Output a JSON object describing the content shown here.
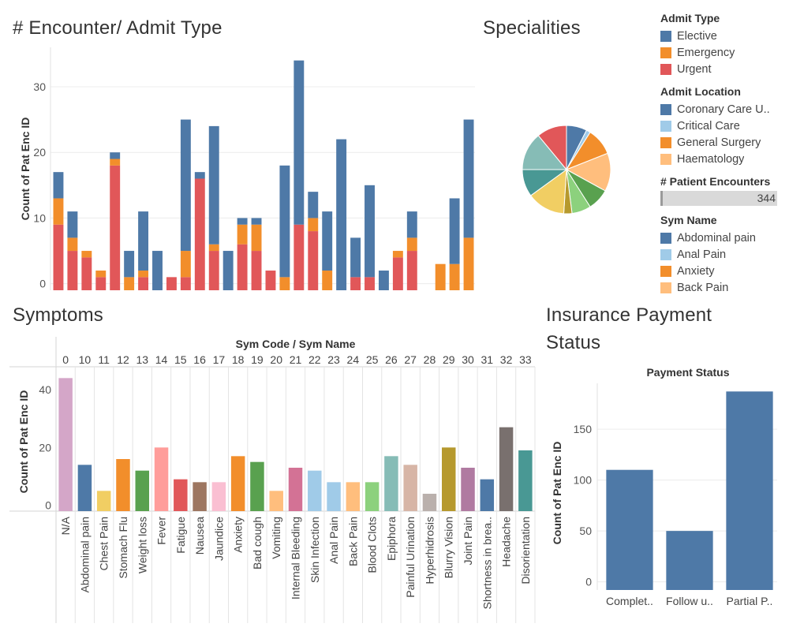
{
  "titles": {
    "encounter": "# Encounter/ Admit Type",
    "specialities": "Specialities",
    "symptoms": "Symptoms",
    "insurance_line1": "Insurance Payment",
    "insurance_line2": "Status"
  },
  "legend": {
    "admit_type": {
      "heading": "Admit Type",
      "items": [
        {
          "label": "Elective",
          "color": "#4e79a7"
        },
        {
          "label": "Emergency",
          "color": "#f28e2b"
        },
        {
          "label": "Urgent",
          "color": "#e15759"
        }
      ]
    },
    "admit_location": {
      "heading": "Admit Location",
      "items": [
        {
          "label": "Coronary Care U..",
          "color": "#4e79a7"
        },
        {
          "label": "Critical Care",
          "color": "#a0cbe8"
        },
        {
          "label": "General Surgery",
          "color": "#f28e2b"
        },
        {
          "label": "Haematology",
          "color": "#ffbe7d"
        }
      ]
    },
    "patient_encounters": {
      "heading": "# Patient Encounters",
      "value": "344"
    },
    "sym_name": {
      "heading": "Sym Name",
      "items": [
        {
          "label": "Abdominal pain",
          "color": "#4e79a7"
        },
        {
          "label": "Anal Pain",
          "color": "#a0cbe8"
        },
        {
          "label": "Anxiety",
          "color": "#f28e2b"
        },
        {
          "label": "Back Pain",
          "color": "#ffbe7d"
        }
      ]
    }
  },
  "chart_data": [
    {
      "id": "encounter",
      "type": "bar",
      "stacked": true,
      "ylabel": "Count of Pat Enc ID",
      "yticks": [
        0,
        10,
        20,
        30
      ],
      "ylim": [
        -1,
        36
      ],
      "grid": true,
      "series": [
        {
          "name": "Urgent",
          "color": "#e15759",
          "values": [
            9,
            5,
            4,
            1,
            18,
            0,
            1,
            0,
            1,
            1,
            16,
            5,
            0,
            6,
            5,
            2,
            0,
            9,
            8,
            0,
            0,
            1,
            1,
            0,
            4,
            5,
            0,
            0,
            0,
            0
          ]
        },
        {
          "name": "Emergency",
          "color": "#f28e2b",
          "values": [
            4,
            2,
            1,
            1,
            1,
            1,
            1,
            0,
            0,
            4,
            0,
            1,
            0,
            3,
            4,
            0,
            1,
            0,
            2,
            2,
            0,
            0,
            0,
            0,
            1,
            2,
            0,
            3,
            3,
            7
          ]
        },
        {
          "name": "Elective",
          "color": "#4e79a7",
          "values": [
            4,
            4,
            0,
            0,
            1,
            4,
            9,
            5,
            0,
            20,
            1,
            18,
            5,
            1,
            1,
            0,
            17,
            25,
            4,
            9,
            22,
            6,
            14,
            2,
            0,
            4,
            0,
            0,
            10,
            18
          ]
        }
      ]
    },
    {
      "id": "specialities",
      "type": "pie",
      "slices": [
        {
          "value": 7.5,
          "color": "#4e79a7"
        },
        {
          "value": 1.5,
          "color": "#a0cbe8"
        },
        {
          "value": 10,
          "color": "#f28e2b"
        },
        {
          "value": 14,
          "color": "#ffbe7d"
        },
        {
          "value": 8,
          "color": "#59a14f"
        },
        {
          "value": 7,
          "color": "#8cd17d"
        },
        {
          "value": 3,
          "color": "#b6992d"
        },
        {
          "value": 14,
          "color": "#f1ce63"
        },
        {
          "value": 10,
          "color": "#499894"
        },
        {
          "value": 14,
          "color": "#86bcb6"
        },
        {
          "value": 11,
          "color": "#e15759"
        }
      ]
    },
    {
      "id": "symptoms",
      "type": "bar",
      "header": "Sym Code  /  Sym Name",
      "ylabel": "Count of Pat Enc ID",
      "yticks": [
        0,
        20,
        40
      ],
      "ylim": [
        -2,
        46
      ],
      "codes": [
        "0",
        "10",
        "11",
        "12",
        "13",
        "14",
        "15",
        "16",
        "17",
        "18",
        "19",
        "20",
        "21",
        "22",
        "23",
        "24",
        "25",
        "26",
        "27",
        "28",
        "29",
        "30",
        "31",
        "32",
        "33"
      ],
      "categories": [
        "N/A",
        "Abdominal pain",
        "Chest Pain",
        "Stomach Flu",
        "Weight loss",
        "Fever",
        "Fatigue",
        "Nausea",
        "Jaundice",
        "Anxiety",
        "Bad cough",
        "Vomiting",
        "Internal Bleeding",
        "Skin Infection",
        "Anal Pain",
        "Back Pain",
        "Blood Clots",
        "Epiphora",
        "Painful Urination",
        "Hyperhidrosis",
        "Blurry Vision",
        "Joint Pain",
        "Shortness in brea..",
        "Headache",
        "Disorientation"
      ],
      "values": [
        44,
        14,
        5,
        16,
        12,
        20,
        9,
        8,
        8,
        17,
        15,
        5,
        13,
        12,
        8,
        8,
        8,
        17,
        14,
        4,
        20,
        13,
        9,
        27,
        19
      ],
      "colors": [
        "#d4a6c8",
        "#4e79a7",
        "#f1ce63",
        "#f28e2b",
        "#59a14f",
        "#ff9d9a",
        "#e15759",
        "#9d7660",
        "#fabfd2",
        "#f28e2b",
        "#59a14f",
        "#ffbe7d",
        "#d37295",
        "#a0cbe8",
        "#a0cbe8",
        "#ffbe7d",
        "#8cd17d",
        "#86bcb6",
        "#d7b5a6",
        "#bab0ac",
        "#b6992d",
        "#b07aa1",
        "#4e79a7",
        "#79706e",
        "#499894"
      ]
    },
    {
      "id": "payment",
      "type": "bar",
      "title": "Payment Status",
      "ylabel": "Count of Pat Enc ID",
      "yticks": [
        0,
        50,
        100,
        150
      ],
      "ylim": [
        -8,
        195
      ],
      "categories": [
        "Complet..",
        "Follow u..",
        "Partial P.."
      ],
      "values": [
        110,
        50,
        187
      ],
      "color": "#4e79a7"
    }
  ]
}
